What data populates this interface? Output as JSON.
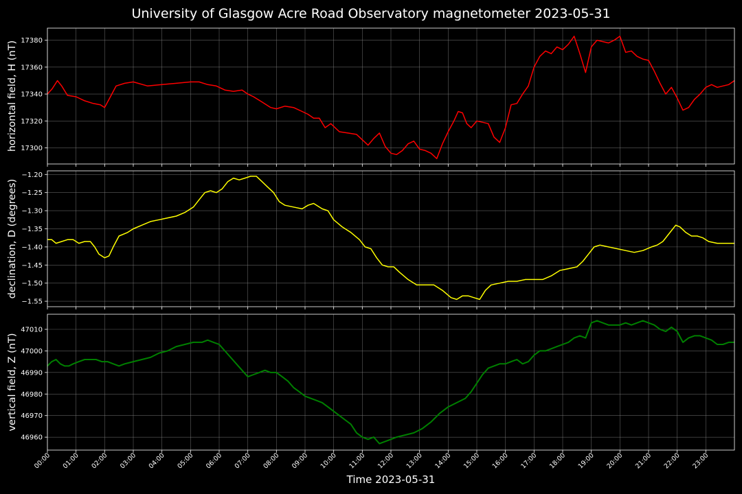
{
  "title": "University of Glasgow Acre Road Observatory magnetometer 2023-05-31",
  "chart_data": {
    "type": "line",
    "title": "University of Glasgow Acre Road Observatory magnetometer 2023-05-31",
    "xlabel": "Time 2023-05-31",
    "x_unit": "hours",
    "xlim": [
      0,
      24
    ],
    "x_ticks": [
      "00:00",
      "01:00",
      "02:00",
      "03:00",
      "04:00",
      "05:00",
      "06:00",
      "07:00",
      "08:00",
      "09:00",
      "10:00",
      "11:00",
      "12:00",
      "13:00",
      "14:00",
      "15:00",
      "16:00",
      "17:00",
      "18:00",
      "19:00",
      "20:00",
      "21:00",
      "22:00",
      "23:00"
    ],
    "grid": true,
    "panels": [
      {
        "ylabel": "horizontal field, H (nT)",
        "color": "#ff0000",
        "ylim": [
          17288,
          17389
        ],
        "y_ticks": [
          17300,
          17320,
          17340,
          17360,
          17380
        ],
        "tick_decimals": 0,
        "x": [
          0,
          0.17,
          0.35,
          0.5,
          0.7,
          1.0,
          1.3,
          1.6,
          1.85,
          2.0,
          2.2,
          2.4,
          2.7,
          3.0,
          3.5,
          4.0,
          4.5,
          5.0,
          5.3,
          5.6,
          5.9,
          6.2,
          6.5,
          6.8,
          7.0,
          7.2,
          7.5,
          7.8,
          8.0,
          8.3,
          8.6,
          8.9,
          9.1,
          9.3,
          9.5,
          9.7,
          9.9,
          10.2,
          10.5,
          10.8,
          11.0,
          11.2,
          11.4,
          11.6,
          11.8,
          12.0,
          12.2,
          12.4,
          12.6,
          12.8,
          13.0,
          13.2,
          13.4,
          13.6,
          13.8,
          14.0,
          14.2,
          14.35,
          14.5,
          14.65,
          14.8,
          15.0,
          15.2,
          15.4,
          15.6,
          15.8,
          16.0,
          16.2,
          16.4,
          16.6,
          16.8,
          17.0,
          17.2,
          17.4,
          17.6,
          17.8,
          18.0,
          18.2,
          18.4,
          18.6,
          18.8,
          19.0,
          19.2,
          19.4,
          19.6,
          19.8,
          20.0,
          20.2,
          20.4,
          20.6,
          20.8,
          21.0,
          21.2,
          21.4,
          21.6,
          21.8,
          22.0,
          22.2,
          22.4,
          22.6,
          22.8,
          23.0,
          23.2,
          23.4,
          23.6,
          23.8,
          24.0
        ],
        "values": [
          17340,
          17344,
          17350,
          17346,
          17339,
          17338,
          17335,
          17333,
          17332,
          17330,
          17338,
          17346,
          17348,
          17349,
          17346,
          17347,
          17348,
          17349,
          17349,
          17347,
          17346,
          17343,
          17342,
          17343,
          17340,
          17338,
          17334,
          17330,
          17329,
          17331,
          17330,
          17327,
          17325,
          17322,
          17322,
          17315,
          17318,
          17312,
          17311,
          17310,
          17306,
          17302,
          17307,
          17311,
          17301,
          17296,
          17295,
          17298,
          17303,
          17305,
          17299,
          17298,
          17296,
          17292,
          17303,
          17312,
          17320,
          17327,
          17326,
          17318,
          17315,
          17320,
          17319,
          17318,
          17308,
          17304,
          17315,
          17332,
          17333,
          17340,
          17346,
          17360,
          17368,
          17372,
          17370,
          17375,
          17373,
          17377,
          17383,
          17370,
          17356,
          17375,
          17380,
          17379,
          17378,
          17380,
          17383,
          17371,
          17372,
          17368,
          17366,
          17365,
          17357,
          17348,
          17340,
          17345,
          17337,
          17328,
          17330,
          17336,
          17340,
          17345,
          17347,
          17345,
          17346,
          17347,
          17350
        ],
        "tick_labels": [
          "17300",
          "17320",
          "17340",
          "17360",
          "17380"
        ]
      },
      {
        "ylabel": "declination, D (degrees)",
        "color": "#ffff00",
        "ylim": [
          -1.565,
          -1.19
        ],
        "y_ticks": [
          -1.55,
          -1.5,
          -1.45,
          -1.4,
          -1.35,
          -1.3,
          -1.25,
          -1.2
        ],
        "tick_decimals": 2,
        "x": [
          0,
          0.15,
          0.3,
          0.5,
          0.7,
          0.9,
          1.1,
          1.3,
          1.5,
          1.65,
          1.8,
          2.0,
          2.15,
          2.3,
          2.5,
          2.8,
          3.0,
          3.3,
          3.6,
          3.9,
          4.2,
          4.5,
          4.8,
          5.1,
          5.3,
          5.5,
          5.7,
          5.9,
          6.1,
          6.3,
          6.5,
          6.7,
          6.9,
          7.1,
          7.3,
          7.5,
          7.7,
          7.9,
          8.1,
          8.3,
          8.6,
          8.9,
          9.1,
          9.3,
          9.6,
          9.8,
          10.0,
          10.3,
          10.6,
          10.9,
          11.1,
          11.3,
          11.5,
          11.7,
          11.9,
          12.1,
          12.3,
          12.6,
          12.9,
          13.2,
          13.5,
          13.8,
          14.1,
          14.3,
          14.5,
          14.7,
          14.9,
          15.1,
          15.3,
          15.5,
          15.8,
          16.1,
          16.4,
          16.7,
          17.0,
          17.3,
          17.6,
          17.9,
          18.2,
          18.5,
          18.7,
          18.9,
          19.1,
          19.3,
          19.6,
          19.9,
          20.2,
          20.5,
          20.8,
          21.1,
          21.3,
          21.5,
          21.65,
          21.8,
          21.95,
          22.1,
          22.3,
          22.5,
          22.7,
          22.9,
          23.1,
          23.4,
          23.7,
          24.0
        ],
        "values": [
          -1.38,
          -1.38,
          -1.39,
          -1.385,
          -1.38,
          -1.38,
          -1.39,
          -1.385,
          -1.385,
          -1.4,
          -1.42,
          -1.43,
          -1.425,
          -1.4,
          -1.37,
          -1.36,
          -1.35,
          -1.34,
          -1.33,
          -1.325,
          -1.32,
          -1.315,
          -1.305,
          -1.29,
          -1.27,
          -1.25,
          -1.245,
          -1.25,
          -1.24,
          -1.22,
          -1.21,
          -1.215,
          -1.21,
          -1.205,
          -1.205,
          -1.22,
          -1.235,
          -1.25,
          -1.275,
          -1.285,
          -1.29,
          -1.295,
          -1.285,
          -1.28,
          -1.295,
          -1.3,
          -1.325,
          -1.345,
          -1.36,
          -1.38,
          -1.4,
          -1.405,
          -1.43,
          -1.45,
          -1.455,
          -1.455,
          -1.47,
          -1.49,
          -1.505,
          -1.505,
          -1.505,
          -1.52,
          -1.54,
          -1.545,
          -1.535,
          -1.535,
          -1.54,
          -1.545,
          -1.52,
          -1.505,
          -1.5,
          -1.495,
          -1.495,
          -1.49,
          -1.49,
          -1.49,
          -1.48,
          -1.465,
          -1.46,
          -1.455,
          -1.44,
          -1.42,
          -1.4,
          -1.395,
          -1.4,
          -1.405,
          -1.41,
          -1.415,
          -1.41,
          -1.4,
          -1.395,
          -1.385,
          -1.37,
          -1.355,
          -1.34,
          -1.345,
          -1.36,
          -1.37,
          -1.37,
          -1.375,
          -1.385,
          -1.39,
          -1.39,
          -1.39
        ],
        "tick_labels": [
          "−1.55",
          "−1.50",
          "−1.45",
          "−1.40",
          "−1.35",
          "−1.30",
          "−1.25",
          "−1.20"
        ]
      },
      {
        "ylabel": "vertical field, Z (nT)",
        "color": "#008000",
        "ylim": [
          46954,
          47017
        ],
        "y_ticks": [
          46960,
          46970,
          46980,
          46990,
          47000,
          47010
        ],
        "tick_decimals": 0,
        "x": [
          0,
          0.15,
          0.3,
          0.45,
          0.6,
          0.75,
          0.9,
          1.1,
          1.3,
          1.5,
          1.7,
          1.9,
          2.1,
          2.3,
          2.5,
          2.7,
          3.0,
          3.3,
          3.6,
          3.9,
          4.2,
          4.5,
          4.8,
          5.1,
          5.4,
          5.6,
          5.8,
          6.0,
          6.2,
          6.4,
          6.6,
          6.8,
          7.0,
          7.2,
          7.4,
          7.6,
          7.8,
          8.0,
          8.2,
          8.4,
          8.6,
          8.8,
          9.0,
          9.2,
          9.4,
          9.6,
          9.8,
          10.0,
          10.2,
          10.4,
          10.6,
          10.8,
          11.0,
          11.2,
          11.4,
          11.6,
          11.8,
          12.0,
          12.2,
          12.5,
          12.8,
          13.1,
          13.4,
          13.7,
          14.0,
          14.3,
          14.6,
          14.8,
          15.0,
          15.2,
          15.4,
          15.6,
          15.8,
          16.0,
          16.2,
          16.4,
          16.6,
          16.8,
          17.0,
          17.2,
          17.4,
          17.6,
          17.8,
          18.0,
          18.2,
          18.4,
          18.6,
          18.8,
          19.0,
          19.2,
          19.4,
          19.6,
          19.8,
          20.0,
          20.2,
          20.4,
          20.6,
          20.8,
          21.0,
          21.2,
          21.4,
          21.6,
          21.8,
          22.0,
          22.2,
          22.4,
          22.6,
          22.8,
          23.0,
          23.2,
          23.4,
          23.6,
          23.8,
          24.0
        ],
        "values": [
          46993,
          46995,
          46996,
          46994,
          46993,
          46993,
          46994,
          46995,
          46996,
          46996,
          46996,
          46995,
          46995,
          46994,
          46993,
          46994,
          46995,
          46996,
          46997,
          46999,
          47000,
          47002,
          47003,
          47004,
          47004,
          47005,
          47004,
          47003,
          47000,
          46997,
          46994,
          46991,
          46988,
          46989,
          46990,
          46991,
          46990,
          46990,
          46988,
          46986,
          46983,
          46981,
          46979,
          46978,
          46977,
          46976,
          46974,
          46972,
          46970,
          46968,
          46966,
          46962,
          46960,
          46959,
          46960,
          46957,
          46958,
          46959,
          46960,
          46961,
          46962,
          46964,
          46967,
          46971,
          46974,
          46976,
          46978,
          46981,
          46985,
          46989,
          46992,
          46993,
          46994,
          46994,
          46995,
          46996,
          46994,
          46995,
          46998,
          47000,
          47000,
          47001,
          47002,
          47003,
          47004,
          47006,
          47007,
          47006,
          47013,
          47014,
          47013,
          47012,
          47012,
          47012,
          47013,
          47012,
          47013,
          47014,
          47013,
          47012,
          47010,
          47009,
          47011,
          47009,
          47004,
          47006,
          47007,
          47007,
          47006,
          47005,
          47003,
          47003,
          47004,
          47004
        ],
        "tick_labels": [
          "46960",
          "46970",
          "46980",
          "46990",
          "47000",
          "47010"
        ]
      }
    ]
  }
}
